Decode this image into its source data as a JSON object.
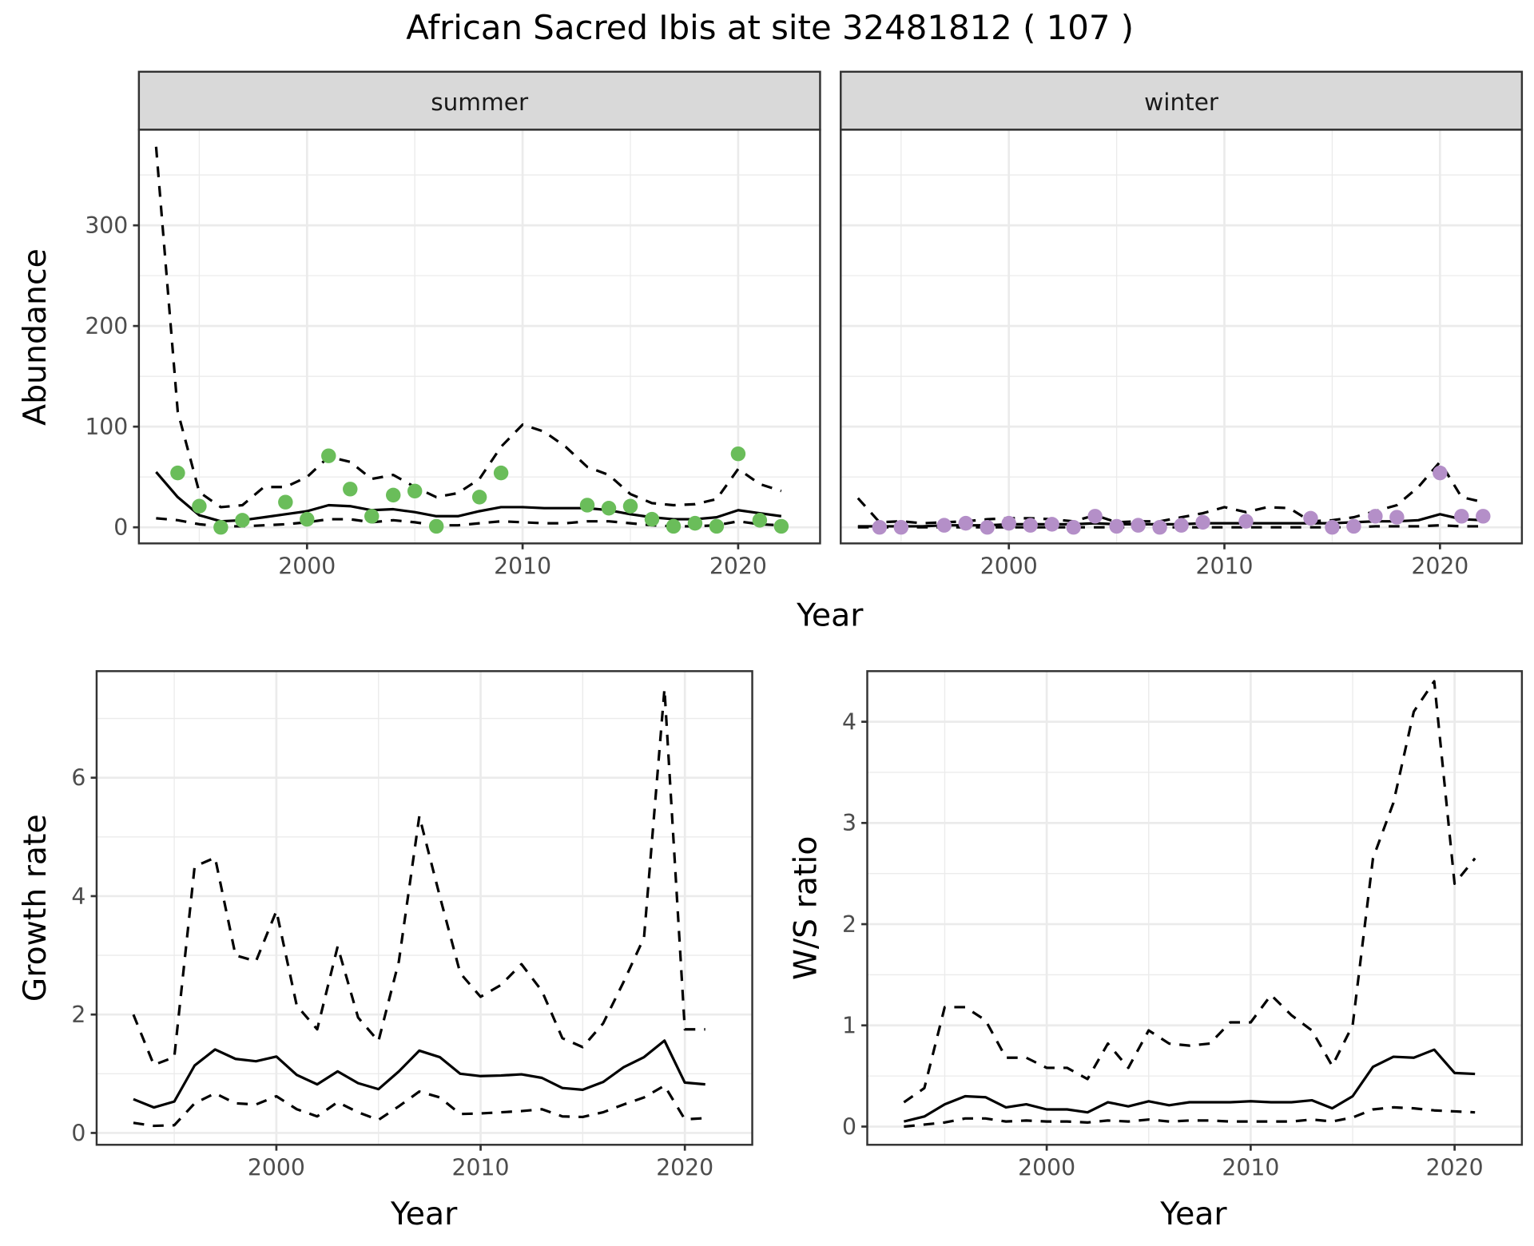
{
  "title": "African Sacred Ibis at site 32481812 ( 107 )",
  "colors": {
    "summer_points": "#6abd5a",
    "winter_points": "#b48fc8",
    "lines": "#000000",
    "strip_bg": "#d9d9d9",
    "grid": "#ebebeb",
    "tick_text": "#4d4d4d"
  },
  "chart_data": [
    {
      "id": "abundance_summer",
      "type": "line",
      "facet": "summer",
      "xlabel": "Year",
      "ylabel": "Abundance",
      "xlim": [
        1992.2,
        2023.8
      ],
      "ylim": [
        -16,
        395
      ],
      "xticks": [
        2000,
        2010,
        2020
      ],
      "yticks": [
        0,
        100,
        200,
        300
      ],
      "grid": true,
      "series": [
        {
          "name": "mean",
          "style": "solid",
          "x": [
            1993,
            1994,
            1995,
            1996,
            1997,
            1998,
            1999,
            2000,
            2001,
            2002,
            2003,
            2004,
            2005,
            2006,
            2007,
            2008,
            2009,
            2010,
            2011,
            2012,
            2013,
            2014,
            2015,
            2016,
            2017,
            2018,
            2019,
            2020,
            2021,
            2022
          ],
          "y": [
            55,
            30,
            12,
            6,
            7,
            10,
            13,
            16,
            22,
            21,
            17,
            18,
            15,
            11,
            11,
            16,
            20,
            20,
            19,
            19,
            19,
            17,
            13,
            10,
            8,
            8,
            10,
            17,
            14,
            11
          ]
        },
        {
          "name": "upper",
          "style": "dashed",
          "x": [
            1993,
            1994,
            1995,
            1996,
            1997,
            1998,
            1999,
            2000,
            2001,
            2002,
            2003,
            2004,
            2005,
            2006,
            2007,
            2008,
            2009,
            2010,
            2011,
            2012,
            2013,
            2014,
            2015,
            2016,
            2017,
            2018,
            2019,
            2020,
            2021,
            2022
          ],
          "y": [
            378,
            115,
            35,
            20,
            22,
            40,
            40,
            50,
            70,
            65,
            48,
            52,
            40,
            30,
            34,
            48,
            80,
            102,
            95,
            80,
            60,
            52,
            33,
            24,
            22,
            23,
            28,
            58,
            43,
            36
          ]
        },
        {
          "name": "lower",
          "style": "dashed",
          "x": [
            1993,
            1994,
            1995,
            1996,
            1997,
            1998,
            1999,
            2000,
            2001,
            2002,
            2003,
            2004,
            2005,
            2006,
            2007,
            2008,
            2009,
            2010,
            2011,
            2012,
            2013,
            2014,
            2015,
            2016,
            2017,
            2018,
            2019,
            2020,
            2021,
            2022
          ],
          "y": [
            9,
            7,
            3,
            1,
            1,
            2,
            3,
            5,
            8,
            8,
            5,
            7,
            5,
            2,
            2,
            4,
            6,
            5,
            4,
            4,
            6,
            6,
            4,
            2,
            1,
            1,
            2,
            6,
            3,
            2
          ]
        },
        {
          "name": "observed",
          "style": "points",
          "x": [
            1994,
            1995,
            1996,
            1997,
            1999,
            2000,
            2001,
            2002,
            2003,
            2004,
            2005,
            2006,
            2008,
            2009,
            2013,
            2014,
            2015,
            2016,
            2017,
            2018,
            2019,
            2020,
            2021,
            2022
          ],
          "y": [
            54,
            21,
            0,
            7,
            25,
            8,
            71,
            38,
            11,
            32,
            36,
            1,
            30,
            54,
            22,
            19,
            21,
            8,
            1,
            4,
            1,
            73,
            7,
            1
          ]
        }
      ]
    },
    {
      "id": "abundance_winter",
      "type": "line",
      "facet": "winter",
      "xlabel": "Year",
      "ylabel": "Abundance",
      "xlim": [
        1992.2,
        2023.8
      ],
      "ylim": [
        -16,
        395
      ],
      "xticks": [
        2000,
        2010,
        2020
      ],
      "yticks": [
        0,
        100,
        200,
        300
      ],
      "grid": true,
      "series": [
        {
          "name": "mean",
          "style": "solid",
          "x": [
            1993,
            1994,
            1995,
            1996,
            1997,
            1998,
            1999,
            2000,
            2001,
            2002,
            2003,
            2004,
            2005,
            2006,
            2007,
            2008,
            2009,
            2010,
            2011,
            2012,
            2013,
            2014,
            2015,
            2016,
            2017,
            2018,
            2019,
            2020,
            2021,
            2022
          ],
          "y": [
            1,
            1,
            1,
            1,
            2,
            2,
            2,
            3,
            3,
            3,
            3,
            4,
            3,
            3,
            3,
            3,
            4,
            4,
            4,
            4,
            4,
            4,
            4,
            5,
            6,
            6,
            7,
            13,
            8,
            7
          ]
        },
        {
          "name": "upper",
          "style": "dashed",
          "x": [
            1993,
            1994,
            1995,
            1996,
            1997,
            1998,
            1999,
            2000,
            2001,
            2002,
            2003,
            2004,
            2005,
            2006,
            2007,
            2008,
            2009,
            2010,
            2011,
            2012,
            2013,
            2014,
            2015,
            2016,
            2017,
            2018,
            2019,
            2020,
            2021,
            2022
          ],
          "y": [
            29,
            5,
            6,
            4,
            5,
            6,
            8,
            9,
            9,
            8,
            6,
            12,
            5,
            6,
            6,
            10,
            14,
            20,
            15,
            20,
            19,
            6,
            7,
            10,
            16,
            22,
            40,
            65,
            30,
            25
          ]
        },
        {
          "name": "lower",
          "style": "dashed",
          "x": [
            1993,
            1994,
            1995,
            1996,
            1997,
            1998,
            1999,
            2000,
            2001,
            2002,
            2003,
            2004,
            2005,
            2006,
            2007,
            2008,
            2009,
            2010,
            2011,
            2012,
            2013,
            2014,
            2015,
            2016,
            2017,
            2018,
            2019,
            2020,
            2021,
            2022
          ],
          "y": [
            0,
            0,
            0,
            0,
            0,
            0,
            0,
            0,
            0,
            0,
            0,
            0,
            0,
            0,
            0,
            0,
            0,
            0,
            0,
            0,
            0,
            0,
            0,
            0,
            1,
            1,
            1,
            2,
            1,
            1
          ]
        },
        {
          "name": "observed",
          "style": "points",
          "x": [
            1994,
            1995,
            1997,
            1998,
            1999,
            2000,
            2001,
            2002,
            2003,
            2004,
            2005,
            2006,
            2007,
            2008,
            2009,
            2011,
            2014,
            2015,
            2016,
            2017,
            2018,
            2020,
            2021,
            2022
          ],
          "y": [
            0,
            0,
            2,
            4,
            0,
            4,
            2,
            3,
            0,
            11,
            1,
            2,
            0,
            2,
            5,
            6,
            9,
            0,
            1,
            11,
            10,
            54,
            11,
            11
          ]
        }
      ]
    },
    {
      "id": "growth_rate",
      "type": "line",
      "xlabel": "Year",
      "ylabel": "Growth rate",
      "xlim": [
        1991.2,
        2023.3
      ],
      "ylim": [
        -0.2,
        7.8
      ],
      "xticks": [
        2000,
        2010,
        2020
      ],
      "yticks": [
        0,
        2,
        4,
        6
      ],
      "grid": true,
      "series": [
        {
          "name": "mean",
          "style": "solid",
          "x": [
            1993,
            1994,
            1995,
            1996,
            1997,
            1998,
            1999,
            2000,
            2001,
            2002,
            2003,
            2004,
            2005,
            2006,
            2007,
            2008,
            2009,
            2010,
            2011,
            2012,
            2013,
            2014,
            2015,
            2016,
            2017,
            2018,
            2019,
            2020,
            2021
          ],
          "y": [
            0.57,
            0.43,
            0.53,
            1.14,
            1.41,
            1.25,
            1.21,
            1.29,
            0.98,
            0.82,
            1.04,
            0.84,
            0.74,
            1.04,
            1.39,
            1.28,
            1.0,
            0.96,
            0.97,
            0.99,
            0.93,
            0.76,
            0.73,
            0.86,
            1.11,
            1.28,
            1.56,
            0.85,
            0.82
          ]
        },
        {
          "name": "upper",
          "style": "dashed",
          "x": [
            1993,
            1994,
            1995,
            1996,
            1997,
            1998,
            1999,
            2000,
            2001,
            2002,
            2003,
            2004,
            2005,
            2006,
            2007,
            2008,
            2009,
            2010,
            2011,
            2012,
            2013,
            2014,
            2015,
            2016,
            2017,
            2018,
            2019,
            2020,
            2021
          ],
          "y": [
            2.0,
            1.15,
            1.28,
            4.5,
            4.65,
            3.0,
            2.9,
            3.75,
            2.15,
            1.75,
            3.15,
            1.95,
            1.55,
            2.9,
            5.35,
            4.0,
            2.7,
            2.3,
            2.5,
            2.85,
            2.4,
            1.6,
            1.45,
            1.85,
            2.55,
            3.3,
            7.5,
            1.75,
            1.75
          ]
        },
        {
          "name": "lower",
          "style": "dashed",
          "x": [
            1993,
            1994,
            1995,
            1996,
            1997,
            1998,
            1999,
            2000,
            2001,
            2002,
            2003,
            2004,
            2005,
            2006,
            2007,
            2008,
            2009,
            2010,
            2011,
            2012,
            2013,
            2014,
            2015,
            2016,
            2017,
            2018,
            2019,
            2020,
            2021
          ],
          "y": [
            0.17,
            0.12,
            0.13,
            0.5,
            0.67,
            0.5,
            0.48,
            0.62,
            0.4,
            0.28,
            0.52,
            0.35,
            0.22,
            0.45,
            0.7,
            0.6,
            0.32,
            0.33,
            0.35,
            0.37,
            0.4,
            0.28,
            0.27,
            0.35,
            0.48,
            0.6,
            0.8,
            0.23,
            0.25
          ]
        }
      ]
    },
    {
      "id": "ws_ratio",
      "type": "line",
      "xlabel": "Year",
      "ylabel": "W/S ratio",
      "xlim": [
        1991.2,
        2023.3
      ],
      "ylim": [
        -0.18,
        4.5
      ],
      "xticks": [
        2000,
        2010,
        2020
      ],
      "yticks": [
        0,
        1,
        2,
        3,
        4
      ],
      "grid": true,
      "series": [
        {
          "name": "mean",
          "style": "solid",
          "x": [
            1993,
            1994,
            1995,
            1996,
            1997,
            1998,
            1999,
            2000,
            2001,
            2002,
            2003,
            2004,
            2005,
            2006,
            2007,
            2008,
            2009,
            2010,
            2011,
            2012,
            2013,
            2014,
            2015,
            2016,
            2017,
            2018,
            2019,
            2020,
            2021
          ],
          "y": [
            0.05,
            0.1,
            0.22,
            0.3,
            0.29,
            0.19,
            0.22,
            0.17,
            0.17,
            0.14,
            0.24,
            0.2,
            0.25,
            0.21,
            0.24,
            0.24,
            0.24,
            0.25,
            0.24,
            0.24,
            0.26,
            0.18,
            0.3,
            0.59,
            0.69,
            0.68,
            0.76,
            0.53,
            0.52
          ]
        },
        {
          "name": "upper",
          "style": "dashed",
          "x": [
            1993,
            1994,
            1995,
            1996,
            1997,
            1998,
            1999,
            2000,
            2001,
            2002,
            2003,
            2004,
            2005,
            2006,
            2007,
            2008,
            2009,
            2010,
            2011,
            2012,
            2013,
            2014,
            2015,
            2016,
            2017,
            2018,
            2019,
            2020,
            2021
          ],
          "y": [
            0.24,
            0.38,
            1.18,
            1.18,
            1.05,
            0.68,
            0.68,
            0.58,
            0.58,
            0.47,
            0.82,
            0.58,
            0.95,
            0.82,
            0.8,
            0.82,
            1.03,
            1.03,
            1.3,
            1.1,
            0.95,
            0.6,
            1.0,
            2.65,
            3.2,
            4.1,
            4.4,
            2.4,
            2.65
          ]
        },
        {
          "name": "lower",
          "style": "dashed",
          "x": [
            1993,
            1994,
            1995,
            1996,
            1997,
            1998,
            1999,
            2000,
            2001,
            2002,
            2003,
            2004,
            2005,
            2006,
            2007,
            2008,
            2009,
            2010,
            2011,
            2012,
            2013,
            2014,
            2015,
            2016,
            2017,
            2018,
            2019,
            2020,
            2021
          ],
          "y": [
            0.0,
            0.02,
            0.04,
            0.08,
            0.08,
            0.05,
            0.06,
            0.05,
            0.05,
            0.04,
            0.06,
            0.05,
            0.07,
            0.05,
            0.06,
            0.06,
            0.05,
            0.05,
            0.05,
            0.05,
            0.07,
            0.05,
            0.09,
            0.17,
            0.19,
            0.18,
            0.16,
            0.15,
            0.14
          ]
        }
      ]
    }
  ],
  "facets": {
    "summer": "summer",
    "winter": "winter"
  },
  "labels": {
    "abundance_y": "Abundance",
    "top_x": "Year",
    "growth_y": "Growth rate",
    "growth_x": "Year",
    "ratio_y": "W/S ratio",
    "ratio_x": "Year"
  }
}
